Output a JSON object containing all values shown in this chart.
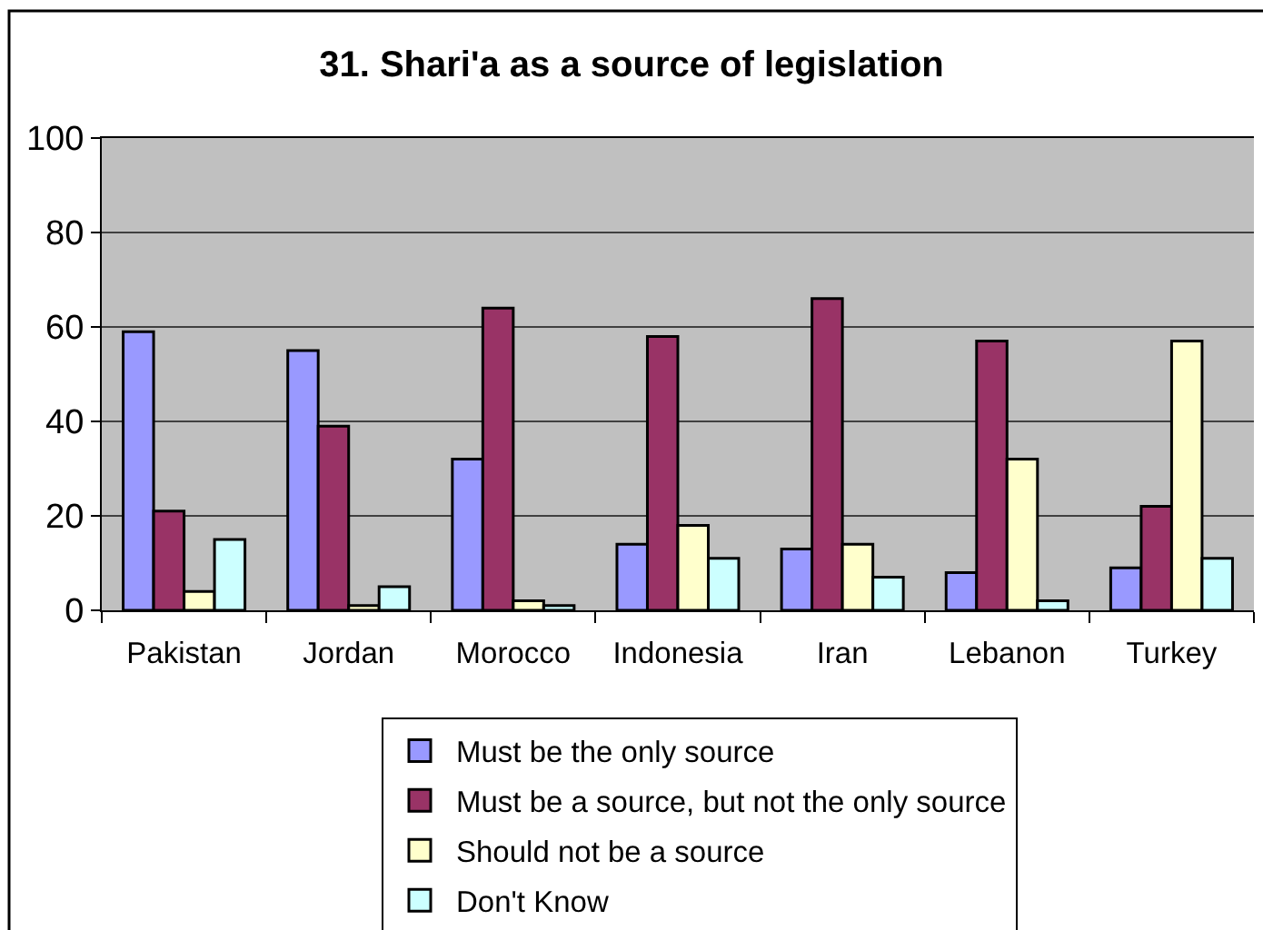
{
  "chart_data": {
    "type": "bar",
    "title": "31. Shari'a as a source of legislation",
    "categories": [
      "Pakistan",
      "Jordan",
      "Morocco",
      "Indonesia",
      "Iran",
      "Lebanon",
      "Turkey"
    ],
    "series": [
      {
        "name": "Must be the only source",
        "color": "#9999ff",
        "values": [
          59,
          55,
          32,
          14,
          13,
          8,
          9
        ]
      },
      {
        "name": "Must be a source, but not the only source",
        "color": "#993366",
        "values": [
          21,
          39,
          64,
          58,
          66,
          57,
          22
        ]
      },
      {
        "name": "Should not be a source",
        "color": "#ffffcc",
        "values": [
          4,
          1,
          2,
          18,
          14,
          32,
          57
        ]
      },
      {
        "name": "Don't Know",
        "color": "#ccffff",
        "values": [
          15,
          5,
          1,
          11,
          7,
          2,
          11
        ]
      }
    ],
    "ylim": [
      0,
      100
    ],
    "yticks": [
      0,
      20,
      40,
      60,
      80,
      100
    ],
    "grid": "y",
    "legend": "bottom"
  }
}
